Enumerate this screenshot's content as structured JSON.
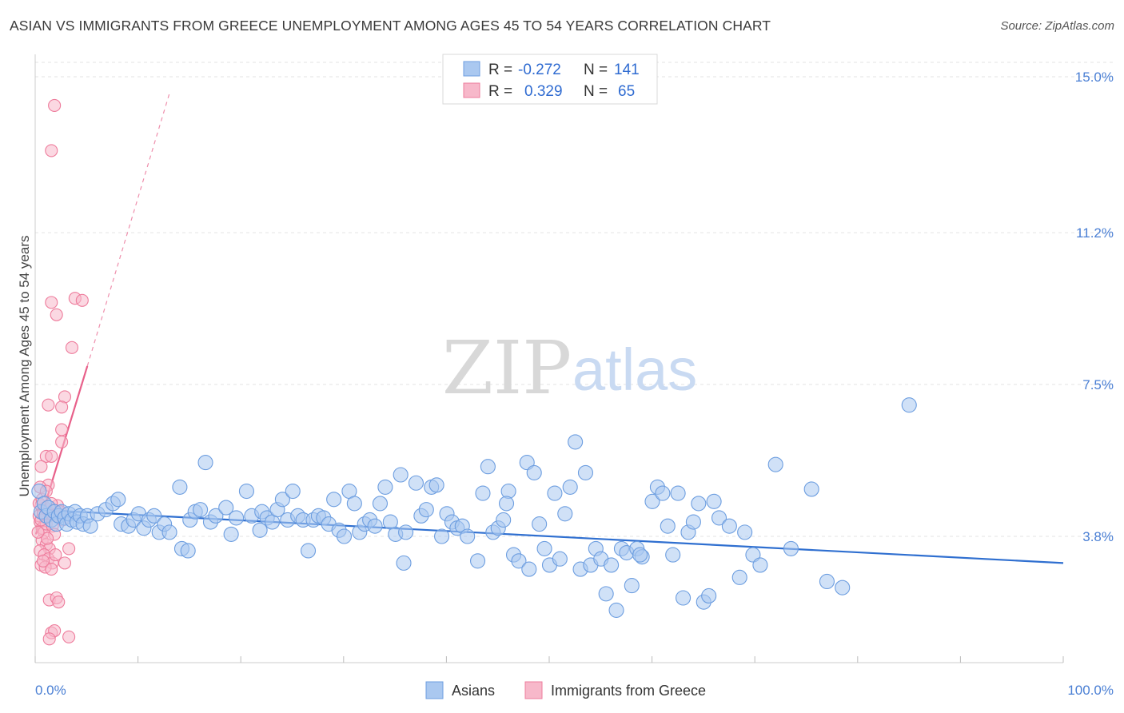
{
  "title": "ASIAN VS IMMIGRANTS FROM GREECE UNEMPLOYMENT AMONG AGES 45 TO 54 YEARS CORRELATION CHART",
  "source": "Source: ZipAtlas.com",
  "watermark": {
    "part1": "ZIP",
    "part2": "atlas"
  },
  "colors": {
    "asian_fill": "#aac8f0",
    "asian_stroke": "#6d9ee0",
    "asian_line": "#2f6fd0",
    "greece_fill": "#f7b8ca",
    "greece_stroke": "#ee7c9c",
    "greece_line": "#e8608a",
    "grid": "#e3e3e3",
    "tick_text": "#4a7fd4"
  },
  "legend": {
    "rows": [
      {
        "r_label": "R =",
        "r_value": "-0.272",
        "n_label": "N =",
        "n_value": "141"
      },
      {
        "r_label": "R =",
        "r_value": "0.329",
        "n_label": "N =",
        "n_value": "65"
      }
    ]
  },
  "chart_data": {
    "type": "scatter",
    "title": "ASIAN VS IMMIGRANTS FROM GREECE UNEMPLOYMENT AMONG AGES 45 TO 54 YEARS CORRELATION CHART",
    "xlabel": "",
    "ylabel": "Unemployment Among Ages 45 to 54 years",
    "xlim": [
      0,
      100
    ],
    "ylim": [
      0,
      16
    ],
    "x_tick_labels": [
      "0.0%",
      "100.0%"
    ],
    "y_ticks": [
      3.8,
      7.5,
      11.2,
      15.0
    ],
    "y_tick_labels": [
      "3.8%",
      "7.5%",
      "11.2%",
      "15.0%"
    ],
    "grid": true,
    "legend_position": "top-center",
    "series": [
      {
        "name": "Asians",
        "r": -0.272,
        "n": 141,
        "trend": {
          "x": [
            0,
            100
          ],
          "y": [
            4.45,
            3.15
          ]
        },
        "points": [
          [
            0.3,
            4.9
          ],
          [
            0.5,
            4.4
          ],
          [
            0.8,
            4.6
          ],
          [
            1.0,
            4.3
          ],
          [
            1.2,
            4.5
          ],
          [
            1.5,
            4.2
          ],
          [
            1.8,
            4.4
          ],
          [
            2.0,
            4.1
          ],
          [
            2.2,
            4.3
          ],
          [
            2.5,
            4.4
          ],
          [
            2.8,
            4.25
          ],
          [
            3.0,
            4.1
          ],
          [
            3.2,
            4.35
          ],
          [
            3.5,
            4.2
          ],
          [
            3.8,
            4.4
          ],
          [
            4.0,
            4.15
          ],
          [
            4.3,
            4.3
          ],
          [
            4.6,
            4.1
          ],
          [
            5.0,
            4.3
          ],
          [
            5.3,
            4.05
          ],
          [
            6.0,
            4.35
          ],
          [
            6.8,
            4.45
          ],
          [
            7.5,
            4.6
          ],
          [
            8.0,
            4.7
          ],
          [
            8.3,
            4.1
          ],
          [
            9.0,
            4.05
          ],
          [
            9.5,
            4.2
          ],
          [
            10.0,
            4.35
          ],
          [
            10.5,
            4.0
          ],
          [
            11.0,
            4.2
          ],
          [
            11.5,
            4.3
          ],
          [
            12.0,
            3.9
          ],
          [
            12.5,
            4.1
          ],
          [
            13.0,
            3.9
          ],
          [
            14.0,
            5.0
          ],
          [
            14.2,
            3.5
          ],
          [
            14.8,
            3.45
          ],
          [
            15.0,
            4.2
          ],
          [
            15.5,
            4.4
          ],
          [
            16.0,
            4.45
          ],
          [
            16.5,
            5.6
          ],
          [
            17.0,
            4.15
          ],
          [
            17.5,
            4.3
          ],
          [
            18.5,
            4.5
          ],
          [
            19.0,
            3.85
          ],
          [
            19.5,
            4.25
          ],
          [
            20.5,
            4.9
          ],
          [
            21.0,
            4.3
          ],
          [
            21.8,
            3.95
          ],
          [
            22.0,
            4.4
          ],
          [
            22.5,
            4.25
          ],
          [
            23.0,
            4.15
          ],
          [
            23.5,
            4.45
          ],
          [
            24.0,
            4.7
          ],
          [
            24.5,
            4.2
          ],
          [
            25.0,
            4.9
          ],
          [
            25.5,
            4.3
          ],
          [
            26.0,
            4.2
          ],
          [
            26.5,
            3.45
          ],
          [
            27.0,
            4.2
          ],
          [
            27.5,
            4.3
          ],
          [
            28.0,
            4.25
          ],
          [
            28.5,
            4.1
          ],
          [
            29.0,
            4.7
          ],
          [
            29.5,
            3.95
          ],
          [
            30.0,
            3.8
          ],
          [
            30.5,
            4.9
          ],
          [
            31.0,
            4.6
          ],
          [
            31.5,
            3.9
          ],
          [
            32.0,
            4.1
          ],
          [
            32.5,
            4.2
          ],
          [
            33.0,
            4.05
          ],
          [
            33.5,
            4.6
          ],
          [
            34.0,
            5.0
          ],
          [
            34.5,
            4.15
          ],
          [
            35.0,
            3.85
          ],
          [
            35.5,
            5.3
          ],
          [
            35.8,
            3.15
          ],
          [
            36.0,
            3.9
          ],
          [
            37.0,
            5.1
          ],
          [
            37.5,
            4.3
          ],
          [
            38.0,
            4.45
          ],
          [
            38.5,
            5.0
          ],
          [
            39.0,
            5.05
          ],
          [
            39.5,
            3.8
          ],
          [
            40.0,
            4.35
          ],
          [
            40.5,
            4.15
          ],
          [
            41.0,
            4.0
          ],
          [
            41.5,
            4.05
          ],
          [
            42.0,
            3.8
          ],
          [
            43.0,
            3.2
          ],
          [
            43.5,
            4.85
          ],
          [
            44.0,
            5.5
          ],
          [
            44.5,
            3.9
          ],
          [
            45.0,
            4.0
          ],
          [
            45.5,
            4.2
          ],
          [
            46.0,
            4.9
          ],
          [
            46.5,
            3.35
          ],
          [
            47.0,
            3.2
          ],
          [
            47.8,
            5.6
          ],
          [
            48.0,
            3.0
          ],
          [
            48.5,
            5.35
          ],
          [
            49.0,
            4.1
          ],
          [
            49.5,
            3.5
          ],
          [
            50.0,
            3.1
          ],
          [
            50.5,
            4.85
          ],
          [
            51.0,
            3.25
          ],
          [
            51.5,
            4.35
          ],
          [
            52.0,
            5.0
          ],
          [
            52.5,
            6.1
          ],
          [
            53.0,
            3.0
          ],
          [
            53.5,
            5.35
          ],
          [
            54.0,
            3.1
          ],
          [
            54.5,
            3.5
          ],
          [
            55.0,
            3.25
          ],
          [
            55.5,
            2.4
          ],
          [
            56.0,
            3.1
          ],
          [
            56.5,
            2.0
          ],
          [
            57.0,
            3.5
          ],
          [
            57.5,
            3.4
          ],
          [
            58.0,
            2.6
          ],
          [
            58.5,
            3.5
          ],
          [
            59.0,
            3.3
          ],
          [
            60.0,
            4.65
          ],
          [
            60.5,
            5.0
          ],
          [
            61.0,
            4.85
          ],
          [
            61.5,
            4.05
          ],
          [
            62.0,
            3.35
          ],
          [
            62.5,
            4.85
          ],
          [
            63.0,
            2.3
          ],
          [
            63.5,
            3.9
          ],
          [
            64.0,
            4.15
          ],
          [
            65.0,
            2.2
          ],
          [
            65.5,
            2.35
          ],
          [
            66.0,
            4.65
          ],
          [
            66.5,
            4.25
          ],
          [
            67.5,
            4.05
          ],
          [
            68.5,
            2.8
          ],
          [
            69.0,
            3.9
          ],
          [
            69.8,
            3.35
          ],
          [
            70.5,
            3.1
          ],
          [
            72.0,
            5.55
          ],
          [
            75.5,
            4.95
          ],
          [
            77.0,
            2.7
          ],
          [
            78.5,
            2.55
          ],
          [
            85.0,
            7.0
          ],
          [
            73.5,
            3.5
          ],
          [
            64.5,
            4.6
          ],
          [
            58.8,
            3.35
          ],
          [
            45.8,
            4.6
          ]
        ]
      },
      {
        "name": "Immigrants from Greece",
        "r": 0.329,
        "n": 65,
        "trend": {
          "x": [
            0,
            5
          ],
          "y": [
            3.85,
            7.95
          ],
          "dashed_to": {
            "x": 13,
            "y": 14.6
          }
        },
        "points": [
          [
            1.8,
            14.3
          ],
          [
            1.5,
            13.2
          ],
          [
            3.8,
            9.6
          ],
          [
            1.5,
            9.5
          ],
          [
            4.5,
            9.55
          ],
          [
            2.0,
            9.2
          ],
          [
            3.5,
            8.4
          ],
          [
            2.8,
            7.2
          ],
          [
            1.2,
            7.0
          ],
          [
            2.5,
            6.95
          ],
          [
            2.5,
            6.4
          ],
          [
            2.5,
            6.1
          ],
          [
            1.0,
            5.75
          ],
          [
            1.5,
            5.75
          ],
          [
            0.5,
            5.5
          ],
          [
            1.2,
            5.05
          ],
          [
            0.5,
            4.55
          ],
          [
            0.7,
            4.4
          ],
          [
            0.9,
            4.25
          ],
          [
            1.1,
            4.45
          ],
          [
            1.3,
            4.3
          ],
          [
            0.4,
            4.15
          ],
          [
            0.6,
            4.0
          ],
          [
            0.8,
            3.9
          ],
          [
            1.0,
            4.1
          ],
          [
            1.4,
            4.35
          ],
          [
            1.7,
            4.45
          ],
          [
            2.0,
            4.3
          ],
          [
            0.3,
            4.3
          ],
          [
            0.5,
            4.2
          ],
          [
            0.7,
            4.35
          ],
          [
            0.9,
            4.5
          ],
          [
            1.6,
            4.05
          ],
          [
            1.8,
            3.85
          ],
          [
            0.6,
            3.7
          ],
          [
            1.0,
            3.6
          ],
          [
            1.3,
            3.5
          ],
          [
            0.4,
            3.45
          ],
          [
            0.8,
            3.35
          ],
          [
            1.2,
            3.25
          ],
          [
            1.6,
            3.15
          ],
          [
            0.5,
            3.1
          ],
          [
            0.9,
            3.05
          ],
          [
            1.5,
            3.0
          ],
          [
            2.8,
            3.15
          ],
          [
            3.2,
            3.5
          ],
          [
            1.3,
            2.25
          ],
          [
            2.0,
            2.3
          ],
          [
            2.2,
            2.2
          ],
          [
            1.5,
            1.45
          ],
          [
            1.8,
            1.5
          ],
          [
            3.2,
            1.35
          ],
          [
            1.3,
            1.3
          ],
          [
            0.3,
            4.6
          ],
          [
            0.6,
            4.7
          ],
          [
            2.1,
            4.55
          ],
          [
            2.4,
            4.4
          ],
          [
            1.1,
            3.75
          ],
          [
            0.2,
            3.9
          ],
          [
            1.9,
            3.35
          ],
          [
            0.7,
            3.2
          ],
          [
            2.6,
            4.2
          ],
          [
            0.4,
            5.0
          ],
          [
            1.5,
            4.6
          ],
          [
            1.0,
            4.9
          ]
        ]
      }
    ]
  },
  "bottom_legend": [
    {
      "label": "Asians"
    },
    {
      "label": "Immigrants from Greece"
    }
  ]
}
